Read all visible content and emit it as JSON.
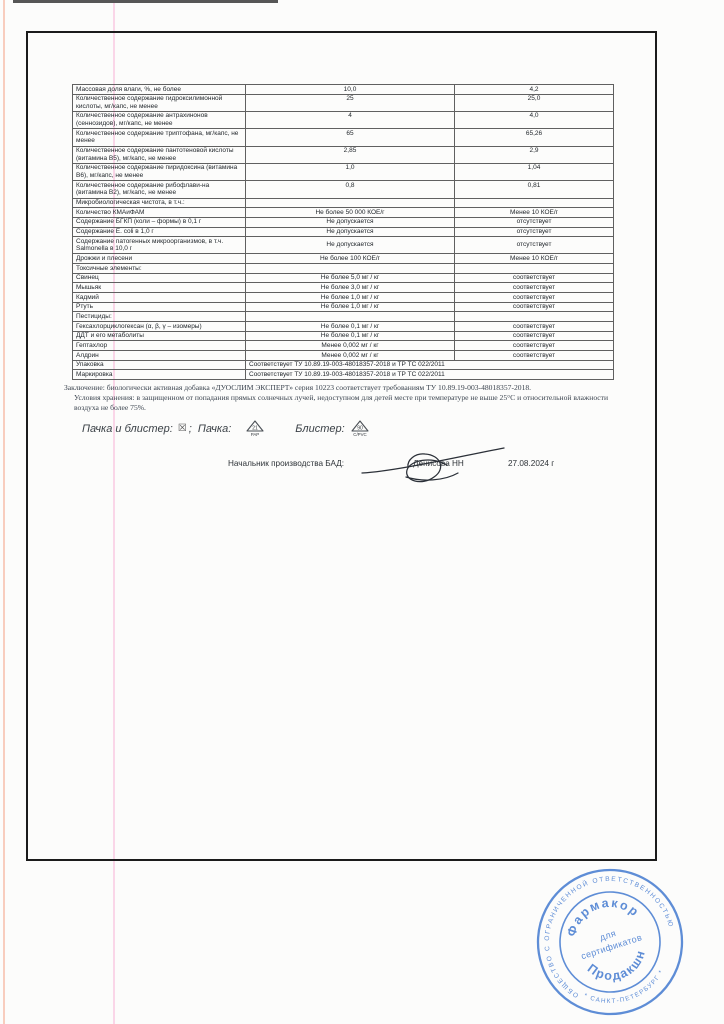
{
  "table": {
    "rows": [
      {
        "label": "Массовая доля влаги, %, не более",
        "limit": "10,0",
        "actual": "4,2"
      },
      {
        "label": "Количественное содержание гидроксилимонной  кислоты, мг/капс, не менее",
        "limit": "25",
        "actual": "25,0"
      },
      {
        "label": "Количественное содержание антрахинонов (сеннозидов), мг/капс, не менее",
        "limit": "4",
        "actual": "4,0"
      },
      {
        "label": "Количественное содержание триптофана, мг/капс, не менее",
        "limit": "65",
        "actual": "65,26"
      },
      {
        "label": "Количественное содержание пантотеновой кислоты (витамина В5), мг/капс, не менее",
        "limit": "2,85",
        "actual": "2,9"
      },
      {
        "label": "Количественное содержание пиридоксина (витамина В6), мг/капс, не менее",
        "limit": "1,0",
        "actual": "1,04"
      },
      {
        "label": "Количественное содержание рибофлави-на (витамина В2), мг/капс, не менее",
        "limit": "0,8",
        "actual": "0,81"
      },
      {
        "label": "Микробиологическая чистота, в т.ч.:",
        "section": true
      },
      {
        "label": "Количество КМАиФАМ",
        "limit": "Не более 50 000 КОЕ/г",
        "actual": "Менее 10 КОЕ/г"
      },
      {
        "label": "Содержание БГКП (коли – формы) в 0,1 г",
        "limit": "Не допускается",
        "actual": "отсутствует"
      },
      {
        "label": "Содержание Е. coli в 1,0 г",
        "limit": "Не допускается",
        "actual": "отсутствует"
      },
      {
        "label": "Содержание патогенных микроорганизмов, в т.ч. Salmonella в 10,0 г",
        "limit": "Не допускается",
        "actual": "отсутствует",
        "mid": true
      },
      {
        "label": "Дрожжи и плесени",
        "limit": "Не более 100 КОЕ/г",
        "actual": "Менее 10 КОЕ/г"
      },
      {
        "label": "Токсичные элементы:",
        "section": true
      },
      {
        "label": "Свинец",
        "limit": "Не более 5,0 мг / кг",
        "actual": "соответствует"
      },
      {
        "label": "Мышьяк",
        "limit": "Не более 3,0 мг / кг",
        "actual": "соответствует"
      },
      {
        "label": "Кадмий",
        "limit": "Не более 1,0 мг / кг",
        "actual": "соответствует"
      },
      {
        "label": "Ртуть",
        "limit": "Не более 1,0 мг / кг",
        "actual": "соответствует"
      },
      {
        "label": "Пестициды:",
        "section": true
      },
      {
        "label": "Гексахлорциклогексан (α, β, γ – изомеры)",
        "limit": "Не более 0,1 мг / кг",
        "actual": "соответствует"
      },
      {
        "label": "ДДТ и его метаболиты",
        "limit": "Не более 0,1 мг / кг",
        "actual": "соответствует"
      },
      {
        "label": "Гептахлор",
        "limit": "Менее 0,002 мг / кг",
        "actual": "соответствует"
      },
      {
        "label": "Алдрин",
        "limit": "Менее 0,002 мг / кг",
        "actual": "соответствует"
      },
      {
        "label": "Упаковка",
        "span": "Соответствует ТУ 10.89.19-003-48018357-2018  и ТР ТС 022/2011"
      },
      {
        "label": "Маркировка",
        "span": "Соответствует ТУ 10.89.19-003-48018357-2018 и ТР ТС 022/2011"
      }
    ]
  },
  "notes": {
    "conclusion": "Заключение: биологически активная добавка «ДУОСЛИМ ЭКСПЕРТ»  серия 10223 соответствует требованиям ТУ 10.89.19-003-48018357-2018.",
    "storage": "Условия хранения: в защищенном от попадания прямых солнечных лучей, недоступном для детей месте при температуре не выше 25°С и относительной влажности воздуха не более 75%."
  },
  "packaging": {
    "pack_and_blister_label": "Пачка и блистер:",
    "box_symbol": "☒",
    "separator": ";",
    "pack_label": "Пачка:",
    "pack_recycle_number": "21",
    "pack_recycle_code": "PAP",
    "blister_label": "Блистер:",
    "blister_recycle_number": "90",
    "blister_recycle_code": "C/PVC"
  },
  "signature": {
    "title": "Начальник производства БАД:",
    "name": "Денисова НН",
    "date": "27.08.2024 г"
  },
  "stamp": {
    "outer_text": "ОБЩЕСТВО С ОГРАНИЧЕННОЙ ОТВЕТСТВЕННОСТЬЮ",
    "bottom_text": "* САНКТ-ПЕТЕРБУРГ *",
    "company_top": "Фармакор",
    "center_line1": "для",
    "center_line2": "сертификатов",
    "company_bottom": "Продакшн",
    "color": "#4d81d3"
  }
}
